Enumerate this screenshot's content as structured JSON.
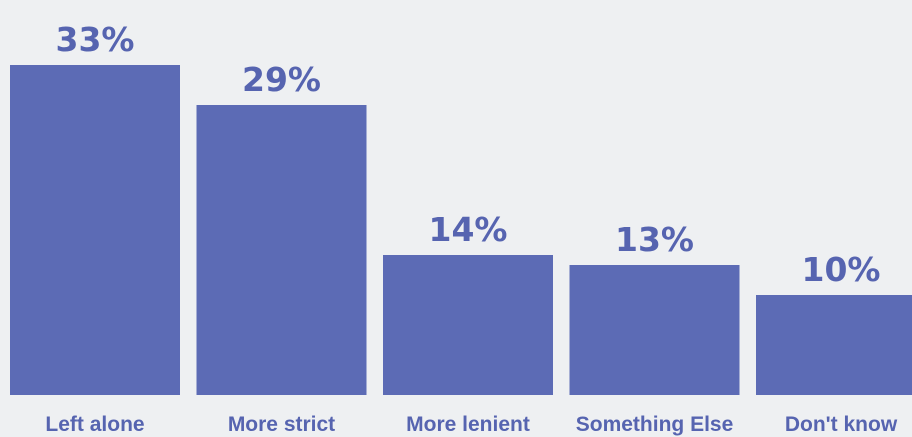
{
  "chart_data": {
    "type": "bar",
    "categories": [
      "Left alone",
      "More strict",
      "More lenient",
      "Something Else",
      "Don't know"
    ],
    "values": [
      33,
      29,
      14,
      13,
      10
    ],
    "value_labels": [
      "33%",
      "29%",
      "14%",
      "13%",
      "10%"
    ],
    "title": "",
    "xlabel": "",
    "ylabel": "",
    "ylim": [
      0,
      36
    ],
    "grid": false,
    "colors": {
      "bar": "#5c6bb5",
      "value_text": "#5664b0",
      "tick_text": "#5664b0",
      "background": "#eef0f2"
    }
  }
}
